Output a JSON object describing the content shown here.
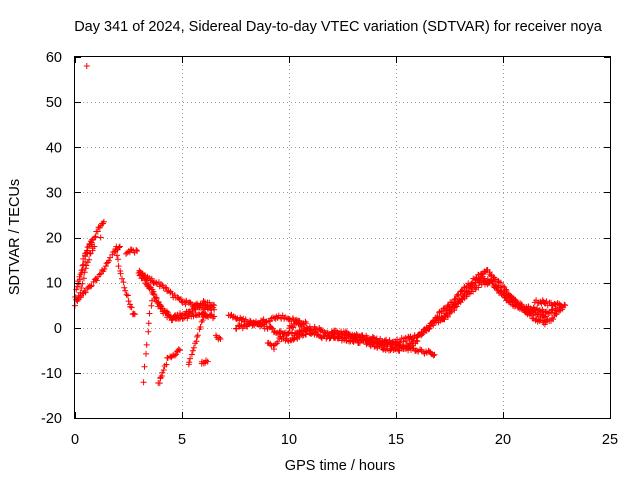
{
  "chart_data": {
    "type": "scatter",
    "title": "Day 341 of 2024, Sidereal Day-to-day VTEC variation (SDTVAR) for receiver noya",
    "xlabel": "GPS time / hours",
    "ylabel": "SDTVAR / TECUs",
    "xlim": [
      0,
      25
    ],
    "ylim": [
      -20,
      60
    ],
    "xticks": [
      0,
      5,
      10,
      15,
      20,
      25
    ],
    "yticks": [
      -20,
      -10,
      0,
      10,
      20,
      30,
      40,
      50,
      60
    ],
    "grid": true,
    "marker": "+",
    "colors": {
      "series": "#ff0000",
      "axis": "#000000",
      "grid": "#a0a0a0"
    },
    "series": [
      {
        "name": "SDTVAR",
        "traces": [
          [
            [
              0.0,
              7
            ],
            [
              0.2,
              11
            ],
            [
              0.4,
              15
            ],
            [
              0.6,
              18
            ],
            [
              0.8,
              19
            ],
            [
              1.0,
              21
            ],
            [
              1.2,
              23
            ],
            [
              1.35,
              23.5
            ]
          ],
          [
            [
              0.0,
              5
            ],
            [
              0.3,
              9
            ],
            [
              0.5,
              13
            ],
            [
              0.7,
              16
            ],
            [
              0.9,
              18
            ]
          ],
          [
            [
              0.1,
              6
            ],
            [
              0.4,
              7.5
            ],
            [
              0.8,
              9.5
            ],
            [
              1.2,
              12
            ],
            [
              1.6,
              15
            ],
            [
              1.9,
              17.5
            ],
            [
              2.1,
              18
            ]
          ],
          [
            [
              0.2,
              10
            ],
            [
              0.4,
              14
            ],
            [
              0.6,
              17
            ],
            [
              0.8,
              19.5
            ]
          ],
          [
            [
              1.9,
              17
            ],
            [
              2.1,
              13
            ],
            [
              2.3,
              9
            ],
            [
              2.5,
              6
            ],
            [
              2.7,
              3.5
            ],
            [
              2.8,
              3
            ]
          ],
          [
            [
              2.4,
              16
            ],
            [
              2.6,
              17
            ],
            [
              2.9,
              17
            ]
          ],
          [
            [
              3.0,
              12
            ],
            [
              3.4,
              11
            ],
            [
              3.8,
              10
            ],
            [
              4.2,
              9
            ],
            [
              4.6,
              7
            ],
            [
              5.0,
              6
            ],
            [
              5.5,
              5
            ],
            [
              6.0,
              5.5
            ],
            [
              6.5,
              5
            ]
          ],
          [
            [
              3.0,
              13
            ],
            [
              3.4,
              10
            ],
            [
              3.8,
              6
            ],
            [
              4.2,
              3
            ],
            [
              4.6,
              2
            ],
            [
              5.0,
              2
            ],
            [
              5.5,
              3
            ],
            [
              6.0,
              3
            ],
            [
              6.5,
              2.5
            ]
          ],
          [
            [
              3.0,
              12
            ],
            [
              3.5,
              9
            ],
            [
              4.0,
              5
            ],
            [
              4.5,
              2
            ],
            [
              5.0,
              3
            ],
            [
              5.5,
              4
            ],
            [
              6.0,
              4.5
            ],
            [
              6.5,
              4
            ]
          ],
          [
            [
              3.2,
              -12
            ],
            [
              3.3,
              -6
            ],
            [
              3.4,
              -1
            ],
            [
              3.5,
              3
            ],
            [
              3.6,
              6
            ]
          ],
          [
            [
              3.9,
              -12.5
            ],
            [
              4.1,
              -10
            ],
            [
              4.3,
              -7
            ],
            [
              4.6,
              -6
            ],
            [
              4.9,
              -5
            ]
          ],
          [
            [
              5.3,
              -8
            ],
            [
              5.5,
              -5
            ],
            [
              5.7,
              -2
            ],
            [
              5.9,
              1
            ],
            [
              6.1,
              3
            ]
          ],
          [
            [
              5.9,
              -7.5
            ],
            [
              6.2,
              -7.5
            ]
          ],
          [
            [
              6.6,
              -2
            ],
            [
              6.8,
              -2.5
            ]
          ],
          [
            [
              7.2,
              3
            ],
            [
              7.6,
              2
            ],
            [
              8.0,
              1.5
            ],
            [
              8.4,
              1
            ],
            [
              8.8,
              1.5
            ],
            [
              9.2,
              2
            ],
            [
              9.6,
              2.5
            ],
            [
              10.0,
              2
            ],
            [
              10.4,
              1.5
            ],
            [
              10.8,
              1
            ]
          ],
          [
            [
              7.5,
              0
            ],
            [
              8.0,
              0.5
            ],
            [
              8.5,
              1
            ],
            [
              9.0,
              0
            ],
            [
              9.5,
              -1
            ],
            [
              10.0,
              -1.5
            ],
            [
              10.5,
              -1
            ],
            [
              11.0,
              -0.5
            ]
          ],
          [
            [
              9.0,
              -3
            ],
            [
              9.3,
              -4.5
            ],
            [
              9.6,
              -2
            ],
            [
              10.0,
              -3
            ],
            [
              10.4,
              -2
            ],
            [
              10.8,
              -1.5
            ]
          ],
          [
            [
              10.0,
              0
            ],
            [
              10.5,
              1
            ],
            [
              11.0,
              -1
            ],
            [
              11.5,
              -2
            ],
            [
              12.0,
              -2
            ],
            [
              12.5,
              -2.5
            ],
            [
              13.0,
              -3
            ],
            [
              13.5,
              -3
            ],
            [
              14.0,
              -4
            ],
            [
              14.5,
              -4.5
            ],
            [
              15.0,
              -5
            ],
            [
              15.5,
              -4
            ],
            [
              16.0,
              -3
            ]
          ],
          [
            [
              11.0,
              0
            ],
            [
              11.5,
              -0.5
            ],
            [
              12.0,
              -1.5
            ],
            [
              12.5,
              -2
            ],
            [
              13.0,
              -2
            ],
            [
              13.5,
              -2.5
            ],
            [
              14.0,
              -3
            ],
            [
              14.5,
              -3.5
            ],
            [
              15.0,
              -4
            ],
            [
              15.5,
              -4.5
            ],
            [
              16.0,
              -5
            ],
            [
              16.5,
              -5.5
            ],
            [
              16.8,
              -6
            ]
          ],
          [
            [
              12.0,
              -1
            ],
            [
              12.5,
              -1
            ],
            [
              13.0,
              -1.5
            ],
            [
              13.5,
              -2
            ],
            [
              14.0,
              -2.5
            ],
            [
              14.5,
              -3
            ],
            [
              15.0,
              -3
            ],
            [
              15.5,
              -2.5
            ],
            [
              16.0,
              -2
            ],
            [
              16.5,
              0
            ]
          ],
          [
            [
              16.0,
              -2
            ],
            [
              16.5,
              0
            ],
            [
              17.0,
              2
            ],
            [
              17.5,
              4
            ],
            [
              18.0,
              6
            ],
            [
              18.5,
              8
            ],
            [
              19.0,
              10
            ],
            [
              19.5,
              10
            ],
            [
              20.0,
              7
            ],
            [
              20.5,
              5
            ],
            [
              21.0,
              4
            ],
            [
              21.5,
              3
            ],
            [
              22.0,
              2.5
            ]
          ],
          [
            [
              16.5,
              0
            ],
            [
              17.0,
              3
            ],
            [
              17.5,
              5
            ],
            [
              18.0,
              8
            ],
            [
              18.5,
              10
            ],
            [
              19.0,
              12
            ],
            [
              19.3,
              12.5
            ],
            [
              19.6,
              11
            ],
            [
              20.0,
              9
            ],
            [
              20.5,
              6
            ],
            [
              21.0,
              4
            ],
            [
              21.5,
              2
            ],
            [
              22.0,
              1
            ],
            [
              22.5,
              3
            ]
          ],
          [
            [
              17.0,
              1
            ],
            [
              17.5,
              3
            ],
            [
              18.0,
              6
            ],
            [
              18.5,
              9
            ],
            [
              19.0,
              11
            ],
            [
              19.5,
              10
            ],
            [
              20.0,
              8
            ],
            [
              20.5,
              6
            ],
            [
              21.0,
              4.5
            ],
            [
              21.5,
              4
            ],
            [
              22.0,
              3.5
            ],
            [
              22.5,
              4
            ],
            [
              22.8,
              4.5
            ]
          ],
          [
            [
              21.5,
              6
            ],
            [
              22.0,
              5.5
            ],
            [
              22.5,
              5
            ],
            [
              22.9,
              5
            ]
          ]
        ],
        "isolated_points": [
          [
            0.55,
            58
          ],
          [
            1.2,
            20
          ],
          [
            4.0,
            -11
          ],
          [
            2.7,
            3
          ]
        ]
      }
    ]
  }
}
